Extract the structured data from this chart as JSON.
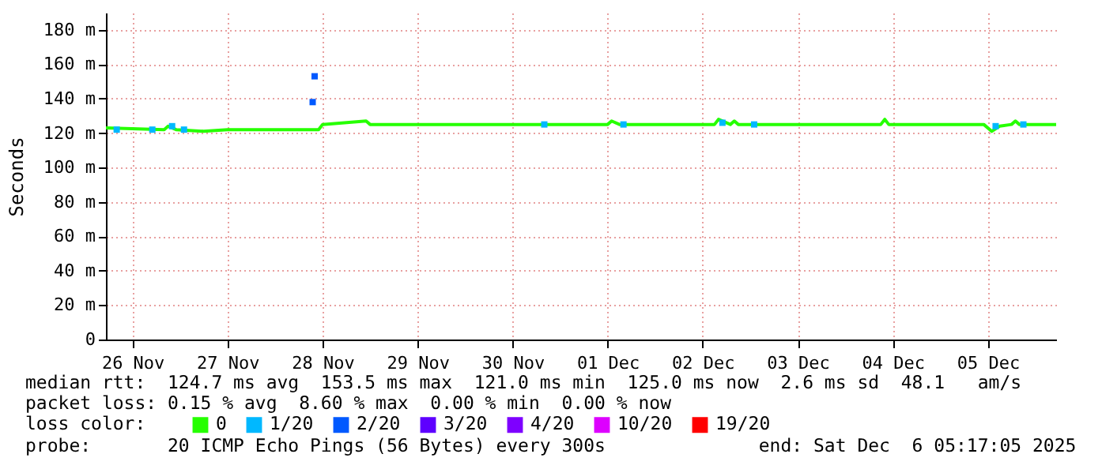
{
  "chart_data": {
    "type": "line",
    "ylabel": "Seconds",
    "legend_title": "loss color:",
    "legend": "bottom",
    "grid": true,
    "xlim": [
      "2025-11-26T05:17",
      "2025-12-06T05:17"
    ],
    "xticks": [
      {
        "value": "2025-11-26T12:00",
        "label": "26 Nov"
      },
      {
        "value": "2025-11-27T12:00",
        "label": "27 Nov"
      },
      {
        "value": "2025-11-28T12:00",
        "label": "28 Nov"
      },
      {
        "value": "2025-11-29T12:00",
        "label": "29 Nov"
      },
      {
        "value": "2025-11-30T12:00",
        "label": "30 Nov"
      },
      {
        "value": "2025-12-01T12:00",
        "label": "01 Dec"
      },
      {
        "value": "2025-12-02T12:00",
        "label": "02 Dec"
      },
      {
        "value": "2025-12-03T12:00",
        "label": "03 Dec"
      },
      {
        "value": "2025-12-04T12:00",
        "label": "04 Dec"
      },
      {
        "value": "2025-12-05T12:00",
        "label": "05 Dec"
      }
    ],
    "ylim": [
      0,
      190
    ],
    "yticks": [
      0,
      {
        "value": 20,
        "label": "20 m"
      },
      {
        "value": 40,
        "label": "40 m"
      },
      {
        "value": 60,
        "label": "60 m"
      },
      {
        "value": 80,
        "label": "80 m"
      },
      {
        "value": 100,
        "label": "100 m"
      },
      {
        "value": 120,
        "label": "120 m"
      },
      {
        "value": 140,
        "label": "140 m"
      },
      {
        "value": 160,
        "label": "160 m"
      },
      {
        "value": 180,
        "label": "180 m"
      }
    ],
    "series": [
      {
        "name": "0",
        "color": "#26ff00",
        "x": [
          "2025-11-26T05:17",
          "2025-11-26T20:00",
          "2025-11-26T21:00",
          "2025-11-26T23:00",
          "2025-11-27T06:00",
          "2025-11-27T12:00",
          "2025-11-28T11:00",
          "2025-11-28T12:00",
          "2025-11-28T23:00",
          "2025-11-29T00:00",
          "2025-12-01T12:00",
          "2025-12-01T13:00",
          "2025-12-01T15:00",
          "2025-12-02T15:00",
          "2025-12-02T16:00",
          "2025-12-02T19:00",
          "2025-12-02T20:00",
          "2025-12-02T21:00",
          "2025-12-04T09:00",
          "2025-12-04T10:00",
          "2025-12-04T11:00",
          "2025-12-05T11:00",
          "2025-12-05T13:00",
          "2025-12-05T15:00",
          "2025-12-05T18:00",
          "2025-12-05T19:00",
          "2025-12-05T20:00",
          "2025-12-06T05:17"
        ],
        "values": [
          123,
          122,
          124,
          122,
          121,
          122,
          122,
          125,
          127,
          125,
          125,
          127,
          125,
          125,
          128,
          125,
          127,
          125,
          125,
          128,
          125,
          125,
          121,
          124,
          125,
          127,
          125,
          125
        ]
      },
      {
        "name": "1/20",
        "color": "#00b8ff",
        "type": "scatter",
        "marker": "square",
        "x": [
          "2025-11-26T08:00",
          "2025-11-26T17:00",
          "2025-11-26T22:00",
          "2025-11-27T01:00",
          "2025-11-30T20:00",
          "2025-12-01T16:00",
          "2025-12-02T17:00",
          "2025-12-03T01:00",
          "2025-12-05T14:00",
          "2025-12-05T21:00"
        ],
        "values": [
          122,
          122,
          124,
          122,
          125,
          125,
          126,
          125,
          124,
          125
        ]
      },
      {
        "name": "2/20",
        "color": "#0059ff",
        "type": "scatter",
        "marker": "square",
        "x": [
          "2025-11-28T09:30",
          "2025-11-28T10:00"
        ],
        "values": [
          138,
          153
        ]
      },
      {
        "name": "3/20",
        "color": "#5e00ff",
        "type": "scatter",
        "marker": "square"
      },
      {
        "name": "4/20",
        "color": "#7e00ff",
        "type": "scatter",
        "marker": "square"
      },
      {
        "name": "10/20",
        "color": "#dd00ff",
        "type": "scatter",
        "marker": "square"
      },
      {
        "name": "19/20",
        "color": "#ff0000",
        "type": "scatter",
        "marker": "square"
      }
    ],
    "annotations": [
      "median rtt:  124.7 ms avg  153.5 ms max  121.0 ms min  125.0 ms now  2.6 ms sd  48.1   am/s",
      "packet loss: 0.15 % avg  8.60 % max  0.00 % min  0.00 % now",
      "probe:       20 ICMP Echo Pings (56 Bytes) every 300s              end: Sat Dec  6 05:17:05 2025"
    ]
  }
}
